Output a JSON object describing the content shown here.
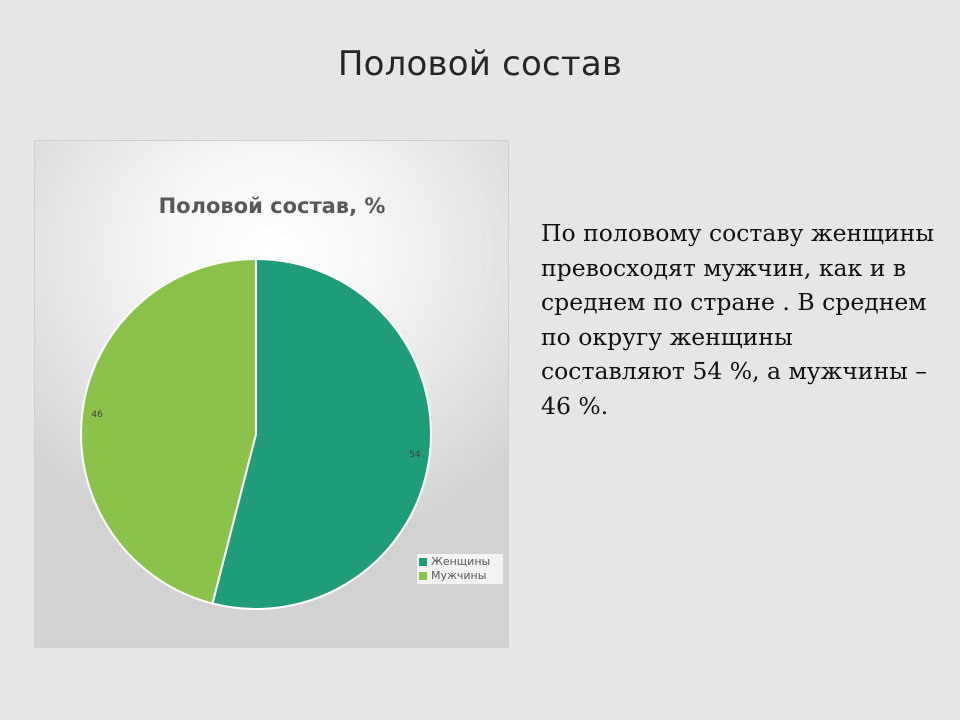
{
  "slide": {
    "title": "Половой состав",
    "body": "По половому составу женщины превосходят мужчин, как и в среднем по стране . В среднем по округу женщины составляют 54 %, а мужчины – 46 %."
  },
  "chart_data": {
    "type": "pie",
    "title": "Половой состав, %",
    "slices": [
      {
        "name": "Женщины",
        "value": 54,
        "label": "54",
        "color": "#1f9c7a"
      },
      {
        "name": "Мужчины",
        "value": 46,
        "label": "46",
        "color": "#8bc34a"
      }
    ],
    "legend_placement": "bottom-right",
    "start_angle_deg": 0,
    "direction": "clockwise"
  }
}
